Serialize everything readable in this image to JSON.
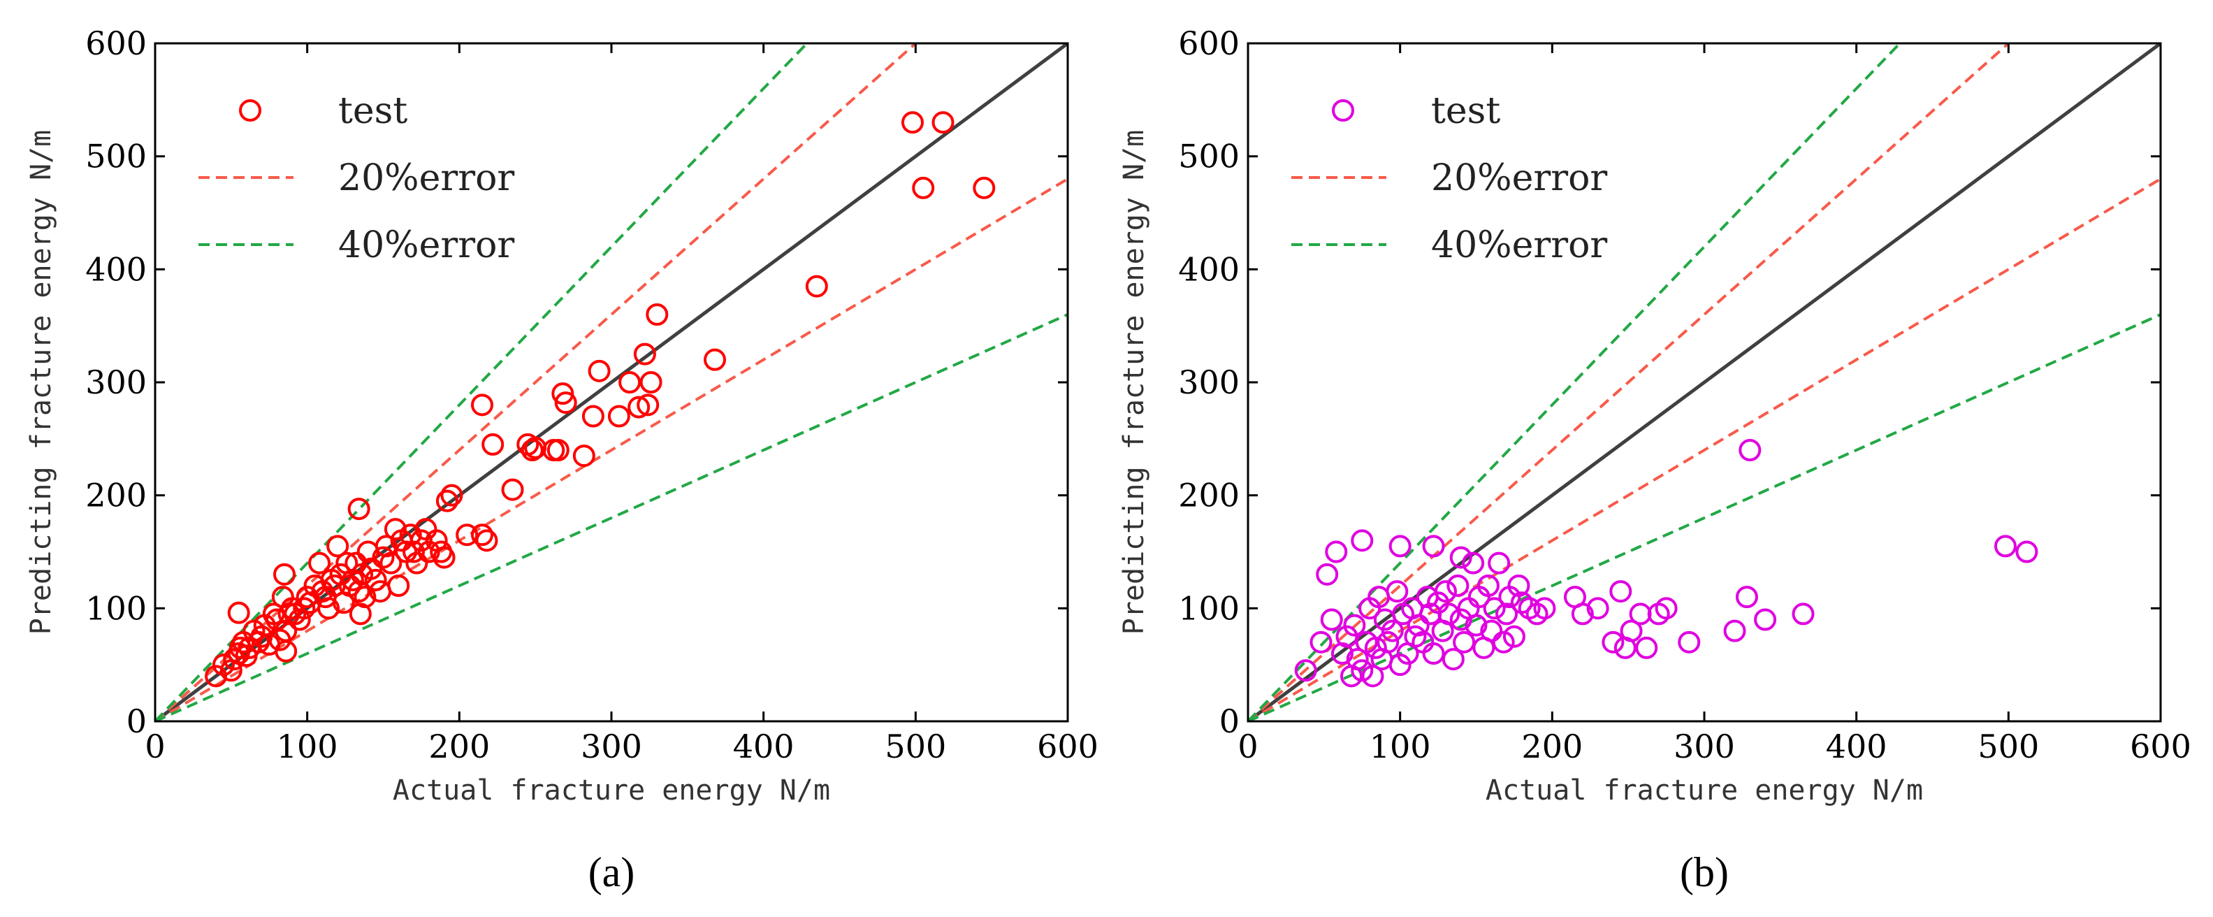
{
  "chart_data": [
    {
      "type": "scatter",
      "panel_label": "(a)",
      "xlabel": "Actual fracture energy N/m",
      "ylabel": "Predicting fracture energy N/m",
      "xlim": [
        0,
        600
      ],
      "ylim": [
        0,
        600
      ],
      "xticks": [
        0,
        100,
        200,
        300,
        400,
        500,
        600
      ],
      "yticks": [
        0,
        100,
        200,
        300,
        400,
        500,
        600
      ],
      "legend_position": "top-left",
      "marker_color": "#ff0000",
      "legend": [
        {
          "label": "test",
          "kind": "marker",
          "color": "#ff0000"
        },
        {
          "label": "20%error",
          "kind": "dashed",
          "color": "#f85a4a"
        },
        {
          "label": "40%error",
          "kind": "dashed",
          "color": "#22a845"
        }
      ],
      "reference_lines": [
        {
          "name": "y=x",
          "slope": 1.0,
          "color": "#404040",
          "style": "solid"
        },
        {
          "name": "+20%",
          "slope": 1.2,
          "color": "#f85a4a",
          "style": "dashed"
        },
        {
          "name": "-20%",
          "slope": 0.8,
          "color": "#f85a4a",
          "style": "dashed"
        },
        {
          "name": "+40%",
          "slope": 1.4,
          "color": "#22a845",
          "style": "dashed"
        },
        {
          "name": "-40%",
          "slope": 0.6,
          "color": "#22a845",
          "style": "dashed"
        }
      ],
      "series": [
        {
          "name": "test",
          "x": [
            40,
            45,
            50,
            52,
            55,
            56,
            58,
            60,
            62,
            65,
            68,
            70,
            72,
            75,
            78,
            80,
            82,
            84,
            85,
            86,
            88,
            90,
            92,
            95,
            98,
            100,
            102,
            105,
            108,
            110,
            112,
            114,
            116,
            118,
            120,
            122,
            124,
            126,
            128,
            130,
            132,
            134,
            135,
            136,
            138,
            140,
            142,
            145,
            148,
            150,
            152,
            155,
            158,
            160,
            162,
            165,
            168,
            170,
            172,
            175,
            178,
            180,
            185,
            188,
            190,
            192,
            195,
            205,
            215,
            218,
            222,
            235,
            245,
            248,
            250,
            262,
            265,
            268,
            270,
            282,
            288,
            292,
            305,
            312,
            318,
            322,
            324,
            326,
            330,
            368,
            435,
            498,
            505,
            518,
            545,
            55,
            86,
            134,
            215
          ],
          "y": [
            40,
            50,
            45,
            55,
            60,
            65,
            70,
            58,
            65,
            80,
            70,
            75,
            85,
            68,
            95,
            90,
            72,
            110,
            130,
            80,
            95,
            100,
            95,
            90,
            100,
            110,
            105,
            120,
            140,
            115,
            110,
            100,
            125,
            120,
            155,
            130,
            105,
            140,
            120,
            125,
            140,
            115,
            95,
            130,
            110,
            150,
            135,
            125,
            115,
            145,
            155,
            140,
            170,
            120,
            160,
            150,
            165,
            150,
            140,
            160,
            170,
            150,
            160,
            150,
            145,
            195,
            200,
            165,
            280,
            160,
            245,
            205,
            245,
            240,
            242,
            240,
            240,
            290,
            282,
            235,
            270,
            310,
            270,
            300,
            278,
            325,
            280,
            300,
            360,
            320,
            385,
            530,
            472,
            530,
            472,
            96,
            62,
            188,
            165
          ]
        }
      ]
    },
    {
      "type": "scatter",
      "panel_label": "(b)",
      "xlabel": "Actual fracture energy N/m",
      "ylabel": "Predicting fracture energy N/m",
      "xlim": [
        0,
        600
      ],
      "ylim": [
        0,
        600
      ],
      "xticks": [
        0,
        100,
        200,
        300,
        400,
        500,
        600
      ],
      "yticks": [
        0,
        100,
        200,
        300,
        400,
        500,
        600
      ],
      "legend_position": "top-left",
      "marker_color": "#e000e0",
      "legend": [
        {
          "label": "test",
          "kind": "marker",
          "color": "#e000e0"
        },
        {
          "label": "20%error",
          "kind": "dashed",
          "color": "#f85a4a"
        },
        {
          "label": "40%error",
          "kind": "dashed",
          "color": "#22a845"
        }
      ],
      "reference_lines": [
        {
          "name": "y=x",
          "slope": 1.0,
          "color": "#404040",
          "style": "solid"
        },
        {
          "name": "+20%",
          "slope": 1.2,
          "color": "#f85a4a",
          "style": "dashed"
        },
        {
          "name": "-20%",
          "slope": 0.8,
          "color": "#f85a4a",
          "style": "dashed"
        },
        {
          "name": "+40%",
          "slope": 1.4,
          "color": "#22a845",
          "style": "dashed"
        },
        {
          "name": "-40%",
          "slope": 0.6,
          "color": "#22a845",
          "style": "dashed"
        }
      ],
      "series": [
        {
          "name": "test",
          "x": [
            38,
            48,
            52,
            55,
            58,
            62,
            65,
            68,
            70,
            72,
            75,
            78,
            80,
            82,
            84,
            86,
            88,
            90,
            92,
            95,
            98,
            100,
            102,
            105,
            108,
            110,
            112,
            115,
            118,
            120,
            122,
            125,
            128,
            130,
            132,
            135,
            138,
            140,
            142,
            145,
            148,
            150,
            152,
            155,
            158,
            160,
            162,
            165,
            168,
            170,
            172,
            175,
            178,
            180,
            185,
            190,
            195,
            215,
            220,
            230,
            240,
            245,
            248,
            252,
            258,
            262,
            270,
            275,
            290,
            320,
            328,
            330,
            340,
            365,
            498,
            512,
            75,
            100,
            122,
            140
          ],
          "y": [
            45,
            70,
            130,
            90,
            150,
            60,
            75,
            40,
            85,
            55,
            160,
            70,
            100,
            40,
            65,
            110,
            55,
            90,
            70,
            80,
            115,
            50,
            95,
            60,
            100,
            75,
            85,
            70,
            110,
            95,
            60,
            105,
            80,
            115,
            95,
            55,
            120,
            90,
            70,
            100,
            140,
            85,
            110,
            65,
            120,
            80,
            100,
            140,
            70,
            95,
            110,
            75,
            120,
            105,
            100,
            95,
            100,
            110,
            95,
            100,
            70,
            115,
            65,
            80,
            95,
            65,
            95,
            100,
            70,
            80,
            110,
            240,
            90,
            95,
            155,
            150,
            45,
            155,
            155,
            145
          ]
        }
      ]
    }
  ]
}
